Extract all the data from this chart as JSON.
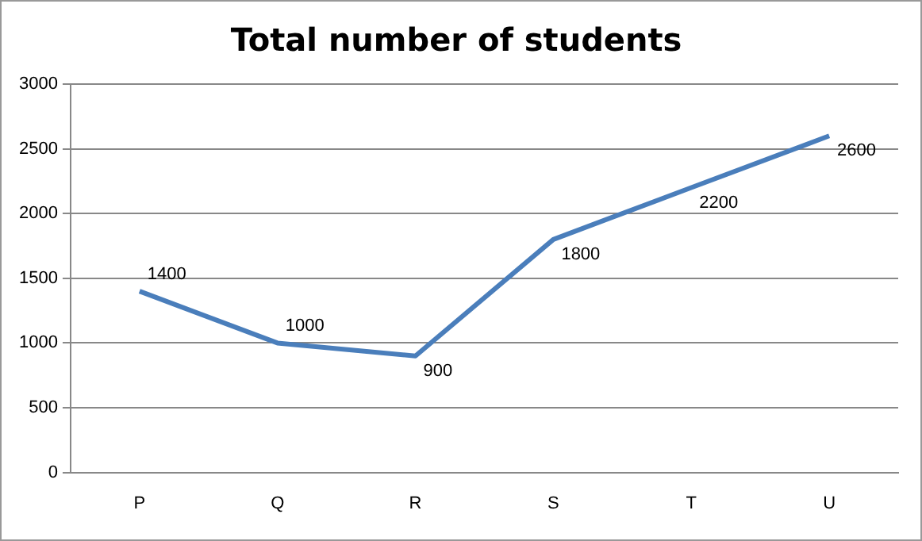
{
  "chart_data": {
    "type": "line",
    "title": "Total number of students",
    "categories": [
      "P",
      "Q",
      "R",
      "S",
      "T",
      "U"
    ],
    "series": [
      {
        "color": "#4a7ebb",
        "values": [
          1400,
          1000,
          900,
          1800,
          2200,
          2600
        ]
      }
    ],
    "ylim": [
      0,
      3000
    ],
    "yticks": [
      0,
      500,
      1000,
      1500,
      2000,
      2500,
      3000
    ],
    "grid": "y",
    "legend": false,
    "data_labels": true,
    "marker": "none",
    "line_style": "solid"
  }
}
